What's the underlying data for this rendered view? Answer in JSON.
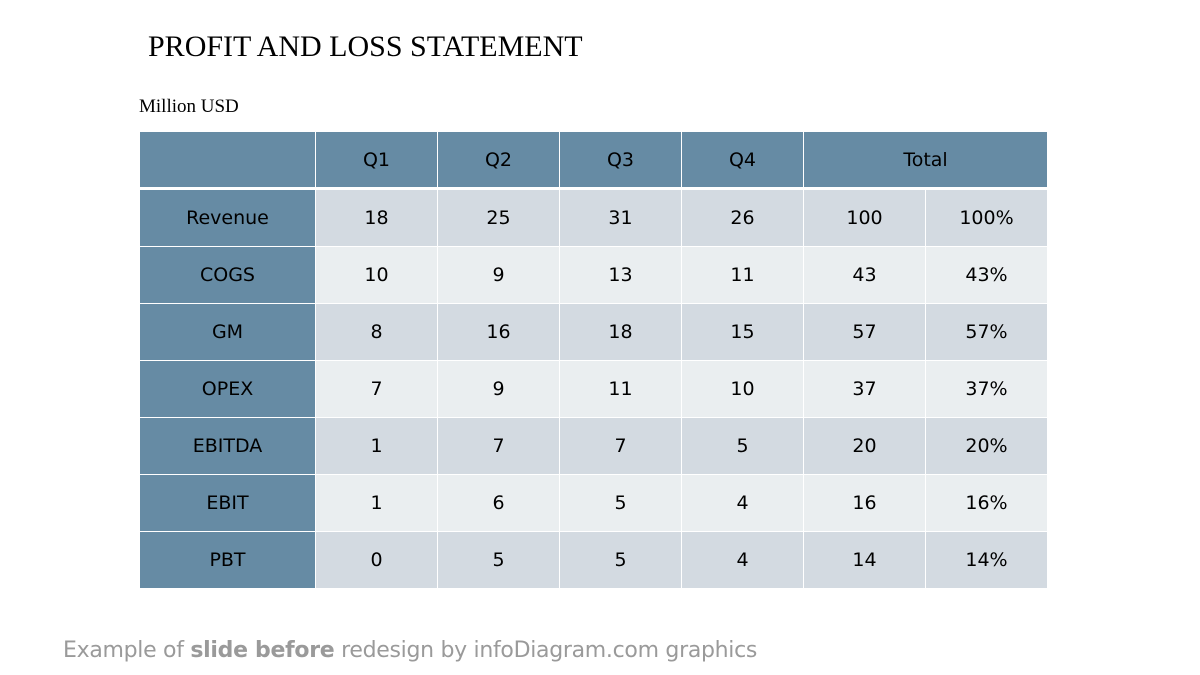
{
  "slide": {
    "title": "PROFIT AND LOSS STATEMENT",
    "units": "Million USD",
    "colors": {
      "header_blue": "#668ba4",
      "band_dark": "#d3dae1",
      "band_light": "#eaeef0",
      "footer_gray": "#9a9a9a"
    }
  },
  "table": {
    "corner": "",
    "headers": [
      "Q1",
      "Q2",
      "Q3",
      "Q4"
    ],
    "total_header": "Total",
    "rows": [
      {
        "label": "Revenue",
        "q1": "18",
        "q2": "25",
        "q3": "31",
        "q4": "26",
        "total": "100",
        "pct": "100%"
      },
      {
        "label": "COGS",
        "q1": "10",
        "q2": "9",
        "q3": "13",
        "q4": "11",
        "total": "43",
        "pct": "43%"
      },
      {
        "label": "GM",
        "q1": "8",
        "q2": "16",
        "q3": "18",
        "q4": "15",
        "total": "57",
        "pct": "57%"
      },
      {
        "label": "OPEX",
        "q1": "7",
        "q2": "9",
        "q3": "11",
        "q4": "10",
        "total": "37",
        "pct": "37%"
      },
      {
        "label": "EBITDA",
        "q1": "1",
        "q2": "7",
        "q3": "7",
        "q4": "5",
        "total": "20",
        "pct": "20%"
      },
      {
        "label": "EBIT",
        "q1": "1",
        "q2": "6",
        "q3": "5",
        "q4": "4",
        "total": "16",
        "pct": "16%"
      },
      {
        "label": "PBT",
        "q1": "0",
        "q2": "5",
        "q3": "5",
        "q4": "4",
        "total": "14",
        "pct": "14%"
      }
    ]
  },
  "footer": {
    "part1": "Example of ",
    "part2_bold": "slide before",
    "part3": " redesign by infoDiagram.com graphics"
  }
}
